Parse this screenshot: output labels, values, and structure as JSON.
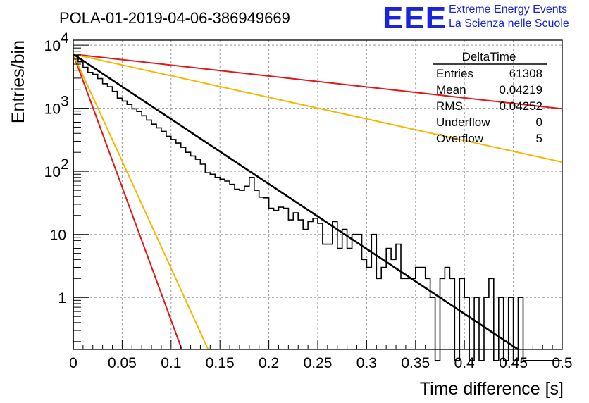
{
  "header": {
    "title": "POLA-01-2019-04-06-386949669",
    "logo_text": "EEE",
    "logo_line1": "Extreme Energy Events",
    "logo_line2": "La Scienza nelle Scuole"
  },
  "stats_box": {
    "title": "DeltaTime",
    "rows": [
      {
        "label": "Entries",
        "value": "61308"
      },
      {
        "label": "Mean",
        "value": "0.04219"
      },
      {
        "label": "RMS",
        "value": "0.04252"
      },
      {
        "label": "Underflow",
        "value": "0"
      },
      {
        "label": "Overflow",
        "value": "5"
      }
    ]
  },
  "chart_data": {
    "type": "line",
    "title": "POLA-01-2019-04-06-386949669",
    "xlabel": "Time difference [s]",
    "ylabel": "Entries/bin",
    "xlim": [
      0,
      0.5
    ],
    "ylim": [
      0.15,
      12000
    ],
    "yscale": "log",
    "grid": true,
    "legend_position": "top-right",
    "x_ticks": [
      {
        "v": 0,
        "label": "0"
      },
      {
        "v": 0.05,
        "label": "0.05"
      },
      {
        "v": 0.1,
        "label": "0.1"
      },
      {
        "v": 0.15,
        "label": "0.15"
      },
      {
        "v": 0.2,
        "label": "0.2"
      },
      {
        "v": 0.25,
        "label": "0.25"
      },
      {
        "v": 0.3,
        "label": "0.3"
      },
      {
        "v": 0.35,
        "label": "0.35"
      },
      {
        "v": 0.4,
        "label": "0.4"
      },
      {
        "v": 0.45,
        "label": "0.45"
      },
      {
        "v": 0.5,
        "label": "0.5"
      }
    ],
    "y_ticks": [
      {
        "v": 1,
        "label": "1"
      },
      {
        "v": 10,
        "label": "10"
      },
      {
        "v": 100,
        "label": "10",
        "exp": "2"
      },
      {
        "v": 1000,
        "label": "10",
        "exp": "3"
      },
      {
        "v": 10000,
        "label": "10",
        "exp": "4"
      }
    ],
    "histogram": {
      "bin_width": 0.005,
      "counts": [
        6800,
        5450,
        4450,
        3700,
        3450,
        2950,
        2450,
        2200,
        1850,
        1450,
        1300,
        1150,
        980,
        890,
        760,
        650,
        560,
        490,
        430,
        360,
        320,
        280,
        240,
        200,
        175,
        155,
        130,
        95,
        90,
        80,
        75,
        70,
        62,
        52,
        50,
        58,
        80,
        50,
        39,
        38,
        26,
        24,
        27,
        26,
        17,
        22,
        17,
        12,
        16,
        18,
        15,
        7,
        7,
        16,
        6,
        12,
        6,
        10,
        10,
        4,
        3,
        10,
        2,
        3,
        6,
        4,
        7,
        2,
        2,
        2,
        3,
        3,
        2,
        1,
        0.1,
        2,
        3,
        2,
        0.1,
        2,
        1,
        0.1,
        1,
        0.1,
        1,
        2,
        0.1,
        1,
        0.1,
        1,
        0.1,
        1,
        0.1,
        0.1,
        0.1,
        0.1,
        0.1,
        0.1,
        0.1,
        0.1
      ]
    },
    "series": [
      {
        "color": "#000000",
        "x": [
          0,
          0.455
        ],
        "y": [
          7200,
          0.15
        ],
        "width": 2.6
      },
      {
        "color": "#e01818",
        "x": [
          0,
          0.5
        ],
        "y": [
          7200,
          980
        ],
        "width": 2
      },
      {
        "color": "#f5b800",
        "x": [
          0,
          0.5
        ],
        "y": [
          7200,
          140
        ],
        "width": 2
      },
      {
        "color": "#e01818",
        "x": [
          0,
          0.111
        ],
        "y": [
          7200,
          0.15
        ],
        "width": 2
      },
      {
        "color": "#f5b800",
        "x": [
          0,
          0.138
        ],
        "y": [
          7200,
          0.15
        ],
        "width": 2
      }
    ]
  }
}
